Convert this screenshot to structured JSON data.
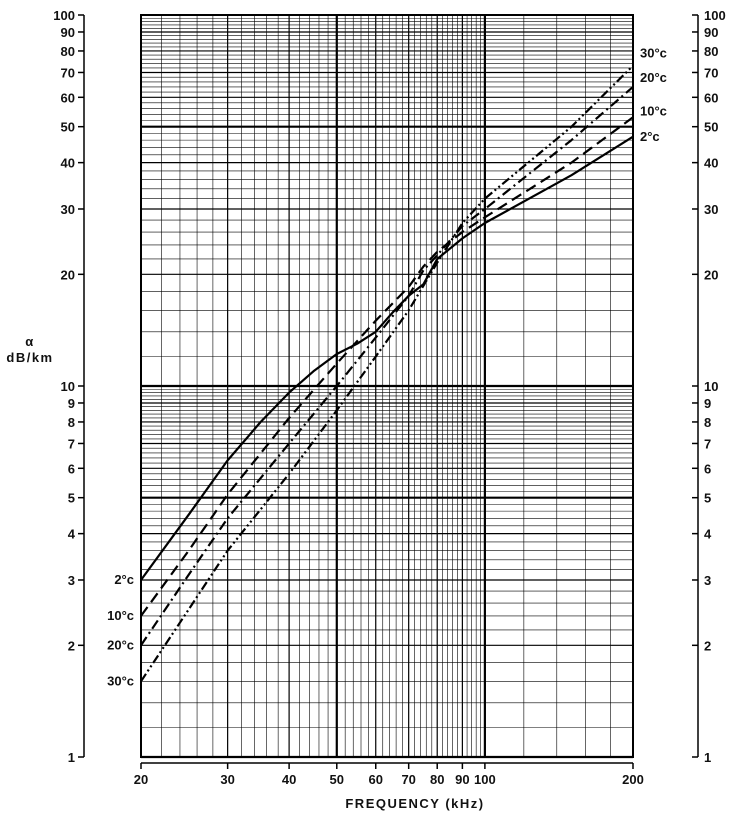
{
  "chart_data": {
    "type": "line",
    "xlabel": "FREQUENCY (kHz)",
    "ylabel": "α\ndB/km",
    "x_scale": "log",
    "y_scale": "log",
    "xlim": [
      20,
      200
    ],
    "ylim": [
      1,
      100
    ],
    "x_ticks": [
      20,
      30,
      40,
      50,
      60,
      70,
      80,
      90,
      100,
      200
    ],
    "y_ticks": [
      1,
      2,
      3,
      4,
      5,
      6,
      7,
      8,
      9,
      10,
      20,
      30,
      40,
      50,
      60,
      70,
      80,
      90,
      100
    ],
    "grid": true,
    "series": [
      {
        "name": "2°c",
        "style": "solid",
        "x": [
          20,
          25,
          30,
          35,
          40,
          45,
          50,
          55,
          60,
          65,
          70,
          75,
          80,
          90,
          100,
          150,
          200
        ],
        "y": [
          3.0,
          4.5,
          6.3,
          8.0,
          9.6,
          11.0,
          12.2,
          13.0,
          14.0,
          15.8,
          17.5,
          18.8,
          22.0,
          25.0,
          27.5,
          37.0,
          47.0
        ]
      },
      {
        "name": "10°c",
        "style": "dashed",
        "x": [
          20,
          25,
          30,
          40,
          50,
          60,
          70,
          75,
          80,
          90,
          100,
          150,
          200
        ],
        "y": [
          2.4,
          3.6,
          5.1,
          8.2,
          11.5,
          15.0,
          18.5,
          21.0,
          23.0,
          26.0,
          28.5,
          40.0,
          53.0
        ]
      },
      {
        "name": "20°c",
        "style": "dash-dot",
        "x": [
          20,
          25,
          30,
          40,
          50,
          60,
          70,
          75,
          80,
          90,
          100,
          150,
          200
        ],
        "y": [
          2.0,
          3.1,
          4.4,
          7.0,
          10.0,
          13.5,
          17.5,
          20.5,
          22.5,
          27.0,
          30.0,
          46.0,
          64.0
        ]
      },
      {
        "name": "30°c",
        "style": "dash-dot-dot",
        "x": [
          20,
          25,
          30,
          40,
          50,
          60,
          70,
          80,
          90,
          100,
          150,
          200
        ],
        "y": [
          1.6,
          2.5,
          3.6,
          5.8,
          8.6,
          12.0,
          16.0,
          21.5,
          27.5,
          32.0,
          50.0,
          73.0
        ]
      }
    ]
  }
}
